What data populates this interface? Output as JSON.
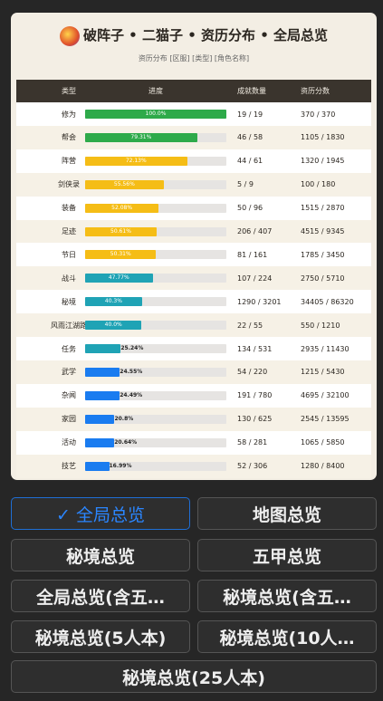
{
  "header": {
    "title": "破阵子 • 二猫子 • 资历分布 • 全局总览",
    "subtitle": "资历分布 [区服] [类型] [角色名称]"
  },
  "table": {
    "columns": [
      "类型",
      "进度",
      "成就数量",
      "资历分数"
    ],
    "rows": [
      {
        "type": "修为",
        "progress": "100.0%",
        "achievements": "19 / 19",
        "points": "370 / 370",
        "color": "#2eaa4a"
      },
      {
        "type": "帮会",
        "progress": "79.31%",
        "achievements": "46 / 58",
        "points": "1105 / 1830",
        "color": "#2eaa4a"
      },
      {
        "type": "阵营",
        "progress": "72.13%",
        "achievements": "44 / 61",
        "points": "1320 / 1945",
        "color": "#f5bd16"
      },
      {
        "type": "剑侠录",
        "progress": "55.56%",
        "achievements": "5 / 9",
        "points": "100 / 180",
        "color": "#f5bd16"
      },
      {
        "type": "装备",
        "progress": "52.08%",
        "achievements": "50 / 96",
        "points": "1515 / 2870",
        "color": "#f5bd16"
      },
      {
        "type": "足迹",
        "progress": "50.61%",
        "achievements": "206 / 407",
        "points": "4515 / 9345",
        "color": "#f5bd16"
      },
      {
        "type": "节日",
        "progress": "50.31%",
        "achievements": "81 / 161",
        "points": "1785 / 3450",
        "color": "#f5bd16"
      },
      {
        "type": "战斗",
        "progress": "47.77%",
        "achievements": "107 / 224",
        "points": "2750 / 5710",
        "color": "#1fa3b5"
      },
      {
        "type": "秘境",
        "progress": "40.3%",
        "achievements": "1290 / 3201",
        "points": "34405 / 86320",
        "color": "#1fa3b5"
      },
      {
        "type": "风雨江湖路",
        "progress": "40.0%",
        "achievements": "22 / 55",
        "points": "550 / 1210",
        "color": "#1fa3b5"
      },
      {
        "type": "任务",
        "progress": "25.24%",
        "achievements": "134 / 531",
        "points": "2935 / 11430",
        "color": "#1fa3b5"
      },
      {
        "type": "武学",
        "progress": "24.55%",
        "achievements": "54 / 220",
        "points": "1215 / 5430",
        "color": "#1a7cf0"
      },
      {
        "type": "杂闻",
        "progress": "24.49%",
        "achievements": "191 / 780",
        "points": "4695 / 32100",
        "color": "#1a7cf0"
      },
      {
        "type": "家园",
        "progress": "20.8%",
        "achievements": "130 / 625",
        "points": "2545 / 13595",
        "color": "#1a7cf0"
      },
      {
        "type": "活动",
        "progress": "20.64%",
        "achievements": "58 / 281",
        "points": "1065 / 5850",
        "color": "#1a7cf0"
      },
      {
        "type": "技艺",
        "progress": "16.99%",
        "achievements": "52 / 306",
        "points": "1280 / 8400",
        "color": "#1a7cf0"
      }
    ]
  },
  "buttons": [
    {
      "label": "✓ 全局总览",
      "selected": true
    },
    {
      "label": "地图总览",
      "selected": false
    },
    {
      "label": "秘境总览",
      "selected": false
    },
    {
      "label": "五甲总览",
      "selected": false
    },
    {
      "label": "全局总览(含五…",
      "selected": false
    },
    {
      "label": "秘境总览(含五…",
      "selected": false
    },
    {
      "label": "秘境总览(5人本)",
      "selected": false
    },
    {
      "label": "秘境总览(10人…",
      "selected": false
    },
    {
      "label": "秘境总览(25人本)",
      "selected": false
    }
  ]
}
